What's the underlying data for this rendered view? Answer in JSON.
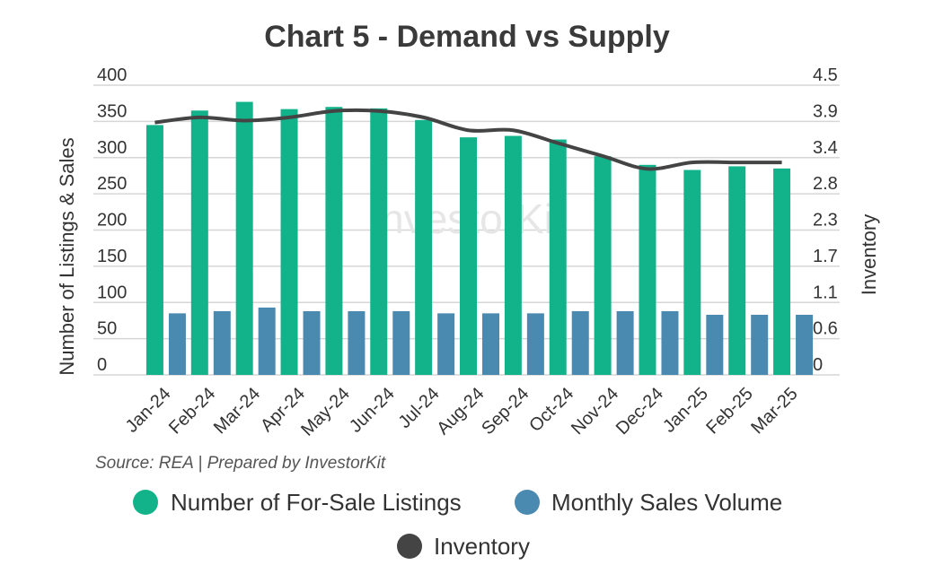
{
  "chart_data": {
    "type": "bar",
    "title": "Chart 5 - Demand vs Supply",
    "categories": [
      "Jan-24",
      "Feb-24",
      "Mar-24",
      "Apr-24",
      "May-24",
      "Jun-24",
      "Jul-24",
      "Aug-24",
      "Sep-24",
      "Oct-24",
      "Nov-24",
      "Dec-24",
      "Jan-25",
      "Feb-25",
      "Mar-25"
    ],
    "series": [
      {
        "name": "Number of For-Sale Listings",
        "type": "bar",
        "axis": "left",
        "color": "#12b38a",
        "values": [
          345,
          365,
          377,
          367,
          370,
          368,
          352,
          328,
          330,
          325,
          302,
          290,
          283,
          288,
          285
        ]
      },
      {
        "name": "Monthly Sales Volume",
        "type": "bar",
        "axis": "left",
        "color": "#4a8ab0",
        "values": [
          85,
          88,
          93,
          88,
          88,
          88,
          85,
          85,
          85,
          88,
          88,
          88,
          83,
          83,
          83
        ]
      },
      {
        "name": "Inventory",
        "type": "line",
        "axis": "right",
        "color": "#444444",
        "values": [
          3.92,
          4.0,
          3.95,
          4.0,
          4.1,
          4.1,
          4.0,
          3.8,
          3.8,
          3.6,
          3.4,
          3.2,
          3.3,
          3.3,
          3.3
        ]
      }
    ],
    "ylabel": "Number of Listings & Sales",
    "y2label": "Inventory",
    "ylim": [
      0,
      400
    ],
    "y2lim": [
      0,
      4.5
    ],
    "yticks": [
      "0",
      "50",
      "100",
      "150",
      "200",
      "250",
      "300",
      "350",
      "400"
    ],
    "y2ticks": [
      "0",
      "0.6",
      "1.1",
      "1.7",
      "2.3",
      "2.8",
      "3.4",
      "3.9",
      "4.5"
    ],
    "grid": true,
    "source": "Source: REA | Prepared by InvestorKit",
    "watermark": "InvestorKit",
    "legend_position": "bottom"
  }
}
